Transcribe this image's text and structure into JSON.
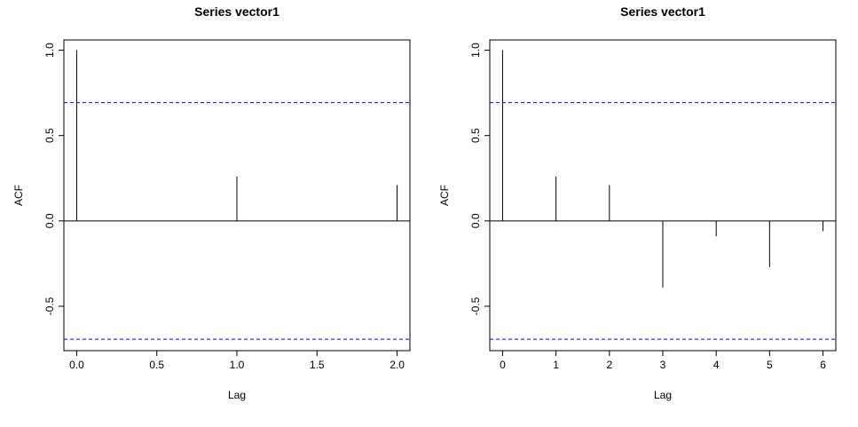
{
  "chart_data": [
    {
      "type": "bar",
      "title": "Series  vector1",
      "xlabel": "Lag",
      "ylabel": "ACF",
      "xlim": [
        -0.08,
        2.08
      ],
      "ylim": [
        -0.76,
        1.06
      ],
      "xticks": [
        0.0,
        0.5,
        1.0,
        1.5,
        2.0
      ],
      "xtick_labels": [
        "0.0",
        "0.5",
        "1.0",
        "1.5",
        "2.0"
      ],
      "yticks": [
        -0.5,
        0.0,
        0.5,
        1.0
      ],
      "ytick_labels": [
        "-0.5",
        "0.0",
        "0.5",
        "1.0"
      ],
      "lags": [
        0,
        1,
        2
      ],
      "acf": [
        1.0,
        0.26,
        0.21
      ],
      "confidence_limit": 0.693,
      "confidence_color": "#0000ff",
      "grid": false
    },
    {
      "type": "bar",
      "title": "Series  vector1",
      "xlabel": "Lag",
      "ylabel": "ACF",
      "xlim": [
        -0.24,
        6.24
      ],
      "ylim": [
        -0.76,
        1.06
      ],
      "xticks": [
        0,
        1,
        2,
        3,
        4,
        5,
        6
      ],
      "xtick_labels": [
        "0",
        "1",
        "2",
        "3",
        "4",
        "5",
        "6"
      ],
      "yticks": [
        -0.5,
        0.0,
        0.5,
        1.0
      ],
      "ytick_labels": [
        "-0.5",
        "0.0",
        "0.5",
        "1.0"
      ],
      "lags": [
        0,
        1,
        2,
        3,
        4,
        5,
        6
      ],
      "acf": [
        1.0,
        0.26,
        0.21,
        -0.39,
        -0.09,
        -0.27,
        -0.06
      ],
      "confidence_limit": 0.693,
      "confidence_color": "#0000ff",
      "grid": false
    }
  ]
}
